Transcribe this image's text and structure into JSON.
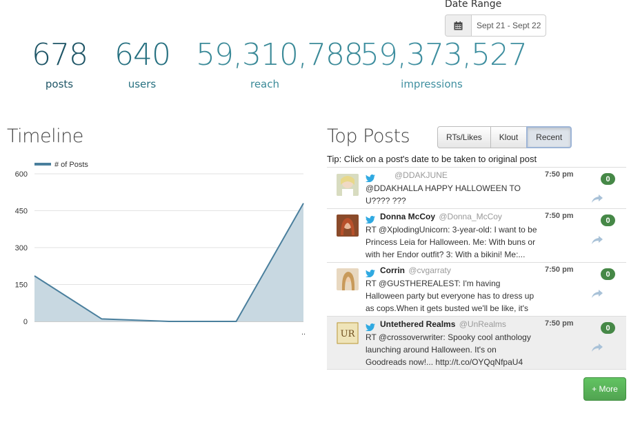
{
  "date_range": {
    "label": "Date Range",
    "value": "Sept 21 - Sept 22",
    "icon": "calendar-icon"
  },
  "stats": [
    {
      "value": "678",
      "label": "posts",
      "color": "#1e5566"
    },
    {
      "value": "640",
      "label": "users",
      "color": "#267080"
    },
    {
      "value": "59,310,788",
      "label": "reach",
      "color": "#3b8a98"
    },
    {
      "value": "59,373,527",
      "label": "impressions",
      "color": "#3f8fa0"
    }
  ],
  "timeline": {
    "title": "Timeline"
  },
  "chart_data": {
    "type": "area",
    "legend": [
      "# of Posts"
    ],
    "x": [
      0,
      1,
      2,
      3,
      4
    ],
    "x_tick_labels": [
      "",
      "",
      "",
      "",
      ".."
    ],
    "series": [
      {
        "name": "# of Posts",
        "values": [
          185,
          10,
          0,
          0,
          480
        ],
        "color": "#4a7f9d"
      }
    ],
    "yticks": [
      0,
      150,
      300,
      450,
      600
    ],
    "ylim": [
      0,
      600
    ],
    "grid": true,
    "legend_position": "top-left"
  },
  "top_posts": {
    "title": "Top Posts",
    "tabs": [
      {
        "label": "RTs/Likes",
        "active": false
      },
      {
        "label": "Klout",
        "active": false
      },
      {
        "label": "Recent",
        "active": true
      }
    ],
    "tip": "Tip: Click on a post's date to be taken to original post",
    "posts": [
      {
        "name": "",
        "handle": "@DDAKJUNE",
        "time": "7:50 pm",
        "text": "@DDAKHALLA HAPPY HALLOWEEN TO U???? ???",
        "count": "0",
        "highlight": false
      },
      {
        "name": "Donna McCoy",
        "handle": "@Donna_McCoy",
        "time": "7:50 pm",
        "text": "RT @XplodingUnicorn: 3-year-old: I want to be Princess Leia for Halloween. Me: With buns or with her Endor outfit? 3: With a bikini! Me:...",
        "count": "0",
        "highlight": false
      },
      {
        "name": "Corrin",
        "handle": "@cvgarraty",
        "time": "7:50 pm",
        "text": "RT @GUSTHEREALEST: I'm having Halloween party but everyone has to dress up as cops.When it gets busted we'll be like, it's all good fam we ...",
        "count": "0",
        "highlight": false
      },
      {
        "name": "Untethered Realms",
        "handle": "@UnRealms",
        "time": "7:50 pm",
        "text": "RT @crossoverwriter: Spooky cool anthology launching around Halloween. It's on Goodreads now!... http://t.co/OYQqNfpaU4",
        "count": "0",
        "highlight": true
      }
    ],
    "more_label": "+ More"
  }
}
